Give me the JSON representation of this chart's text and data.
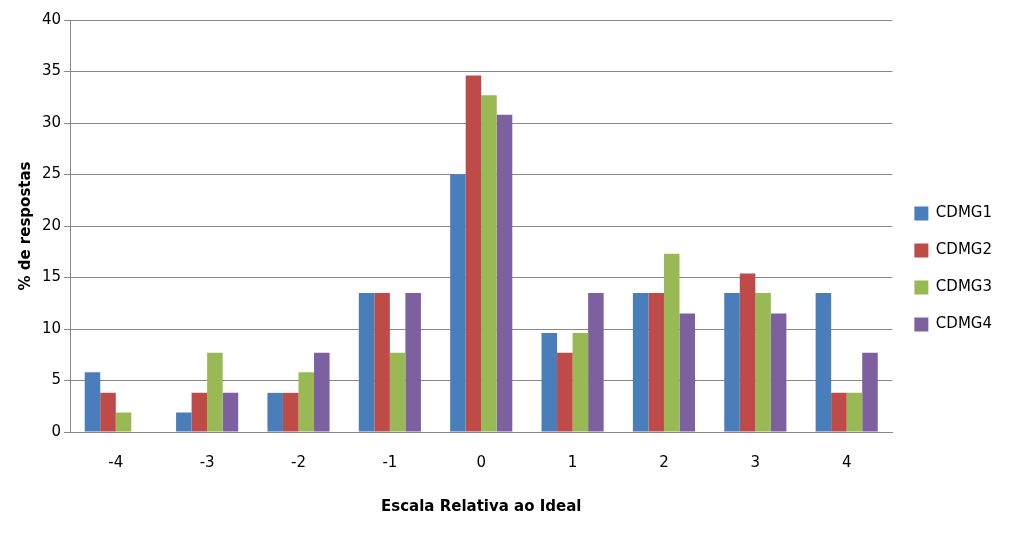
{
  "chart_data": {
    "type": "bar",
    "xlabel": "Escala Relativa ao Ideal",
    "ylabel": "% de respostas",
    "categories": [
      "-4",
      "-3",
      "-2",
      "-1",
      "0",
      "1",
      "2",
      "3",
      "4"
    ],
    "series": [
      {
        "name": "CDMG1",
        "color": "#4a7ebb",
        "values": [
          5.8,
          1.9,
          3.8,
          13.5,
          25,
          9.6,
          13.5,
          13.5,
          13.5
        ]
      },
      {
        "name": "CDMG2",
        "color": "#be4b48",
        "values": [
          3.8,
          3.8,
          3.8,
          13.5,
          34.6,
          7.7,
          13.5,
          15.4,
          3.8
        ]
      },
      {
        "name": "CDMG3",
        "color": "#98b954",
        "values": [
          1.9,
          7.7,
          5.8,
          7.7,
          32.7,
          9.6,
          17.3,
          13.5,
          3.8
        ]
      },
      {
        "name": "CDMG4",
        "color": "#7d60a0",
        "values": [
          0,
          3.8,
          7.7,
          13.5,
          30.8,
          13.5,
          11.5,
          11.5,
          7.7
        ]
      }
    ],
    "ylim": [
      0,
      40
    ],
    "yticks": [
      0,
      5,
      10,
      15,
      20,
      25,
      30,
      35,
      40
    ],
    "grid": "y",
    "legend": "right"
  }
}
